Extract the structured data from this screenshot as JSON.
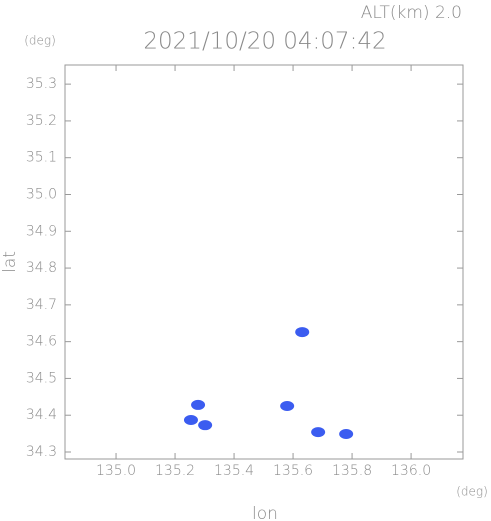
{
  "chart_data": {
    "type": "scatter",
    "title": "2021/10/20 04:07:42",
    "altitude": "ALT(km) 2.0",
    "x_label": "lon",
    "y_label": "lat",
    "x_unit": "(deg)",
    "y_unit": "(deg)",
    "xlim": [
      134.827,
      136.176
    ],
    "ylim": [
      34.281,
      35.352
    ],
    "xticks": [
      {
        "value": 135,
        "label": "135.0"
      },
      135.2,
      135.4,
      135.6,
      135.8,
      {
        "value": 136,
        "label": "136.0"
      }
    ],
    "yticks": [
      34.3,
      34.4,
      34.5,
      34.6,
      34.7,
      34.8,
      34.9,
      {
        "value": 35,
        "label": "35.0"
      },
      35.1,
      35.2,
      35.3
    ],
    "series": [
      {
        "color": "#3b5cf0",
        "x": [
          135.278,
          135.254,
          135.302,
          135.58,
          135.631,
          135.685,
          135.78
        ],
        "values": [
          34.428,
          34.387,
          34.373,
          34.425,
          34.626,
          34.354,
          34.349
        ]
      }
    ]
  }
}
